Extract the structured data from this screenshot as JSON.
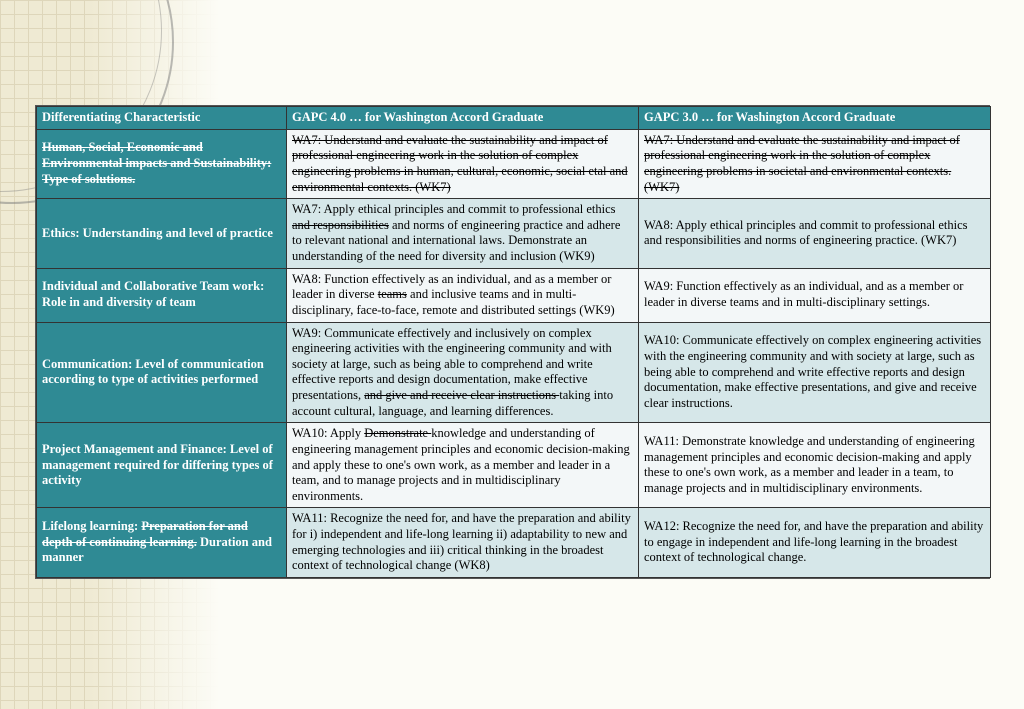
{
  "colors": {
    "header_bg": "#2f8a94",
    "header_text": "#ffffff",
    "row_alt_bg": "#d6e7e9",
    "row_norm_bg": "#f3f7f8",
    "border": "#333333",
    "page_bg": "#fcfcf6",
    "pattern_line": "#c7b88a",
    "pattern_fill": "#e5dcb8"
  },
  "columns": {
    "c1": "Differentiating Characteristic",
    "c2": "GAPC 4.0 … for Washington Accord Graduate",
    "c3": "GAPC 3.0 … for Washington Accord Graduate"
  },
  "rows": [
    {
      "alt": false,
      "label": [
        {
          "t": "Human, Social, Economic and Environmental impacts and Sustainability: Type of solutions.",
          "s": true
        }
      ],
      "c2": [
        {
          "t": "WA7: Understand and evaluate the sustainability and impact of professional engineering work in the solution of complex engineering problems in human, cultural, economic, social etal and environmental contexts. (WK7)",
          "s": true
        }
      ],
      "c3": [
        {
          "t": "WA7: Understand and evaluate the sustainability and impact of professional engineering work in the solution of complex engineering problems in societal and environmental contexts. (WK7)",
          "s": true
        }
      ]
    },
    {
      "alt": true,
      "label": [
        {
          "t": "Ethics: Understanding and level of practice",
          "s": false
        }
      ],
      "c2": [
        {
          "t": "WA7: Apply ethical principles and commit to professional ethics ",
          "s": false
        },
        {
          "t": "and responsibilities",
          "s": true
        },
        {
          "t": " and norms of engineering practice and adhere to relevant national and international laws. Demonstrate an understanding of the need for diversity and inclusion (WK9)",
          "s": false
        }
      ],
      "c3": [
        {
          "t": "WA8: Apply ethical principles and commit to professional ethics and responsibilities and norms of engineering practice. (WK7)",
          "s": false
        }
      ]
    },
    {
      "alt": false,
      "label": [
        {
          "t": "Individual and Collaborative Team work: Role in and diversity of team",
          "s": false
        }
      ],
      "c2": [
        {
          "t": "WA8: Function effectively as an individual, and as a member or leader in diverse ",
          "s": false
        },
        {
          "t": "teams",
          "s": true
        },
        {
          "t": " and inclusive teams and in multi-disciplinary, face-to-face, remote and distributed settings (WK9)",
          "s": false
        }
      ],
      "c3": [
        {
          "t": "WA9: Function effectively as an individual, and as a member or leader in diverse teams and in multi-disciplinary settings.",
          "s": false
        }
      ]
    },
    {
      "alt": true,
      "label": [
        {
          "t": "Communication: Level of communication according to type of activities performed",
          "s": false
        }
      ],
      "c2": [
        {
          "t": "WA9: Communicate effectively and inclusively on complex engineering activities with the engineering community and with society at large, such as being able to comprehend and write effective reports and design documentation, make effective presentations, ",
          "s": false
        },
        {
          "t": "and give and receive clear instructions ",
          "s": true
        },
        {
          "t": "taking into account cultural, language, and learning differences.",
          "s": false
        }
      ],
      "c3": [
        {
          "t": "WA10: Communicate effectively on complex engineering activities with the engineering community and with society at large, such as being able to comprehend and write effective reports and design documentation, make effective presentations, and give and receive clear instructions.",
          "s": false
        }
      ]
    },
    {
      "alt": false,
      "label": [
        {
          "t": "Project Management and Finance: Level of management required for differing types of activity",
          "s": false
        }
      ],
      "c2": [
        {
          "t": "WA10: Apply ",
          "s": false
        },
        {
          "t": "Demonstrate ",
          "s": true
        },
        {
          "t": "knowledge and understanding of engineering management principles and economic decision-making and apply these to one's own work, as a member and leader in a team, and to manage projects and in multidisciplinary environments.",
          "s": false
        }
      ],
      "c3": [
        {
          "t": "WA11: Demonstrate knowledge and understanding of engineering management principles and economic decision-making and apply these to one's own work, as a member and leader in a team, to manage projects and in multidisciplinary environments.",
          "s": false
        }
      ]
    },
    {
      "alt": true,
      "label": [
        {
          "t": "Lifelong learning: ",
          "s": false
        },
        {
          "t": "Preparation for and depth of continuing learning.",
          "s": true
        },
        {
          "t": " Duration and manner",
          "s": false
        }
      ],
      "c2": [
        {
          "t": "WA11: Recognize the need for, and have the preparation and ability for i) independent and life-long learning ii) adaptability to new and emerging technologies and iii) critical thinking in the broadest context of technological change (WK8)",
          "s": false
        }
      ],
      "c3": [
        {
          "t": "WA12: Recognize the need for, and have the preparation and ability to engage in independent and life-long learning in the broadest context of technological change.",
          "s": false
        }
      ]
    }
  ]
}
